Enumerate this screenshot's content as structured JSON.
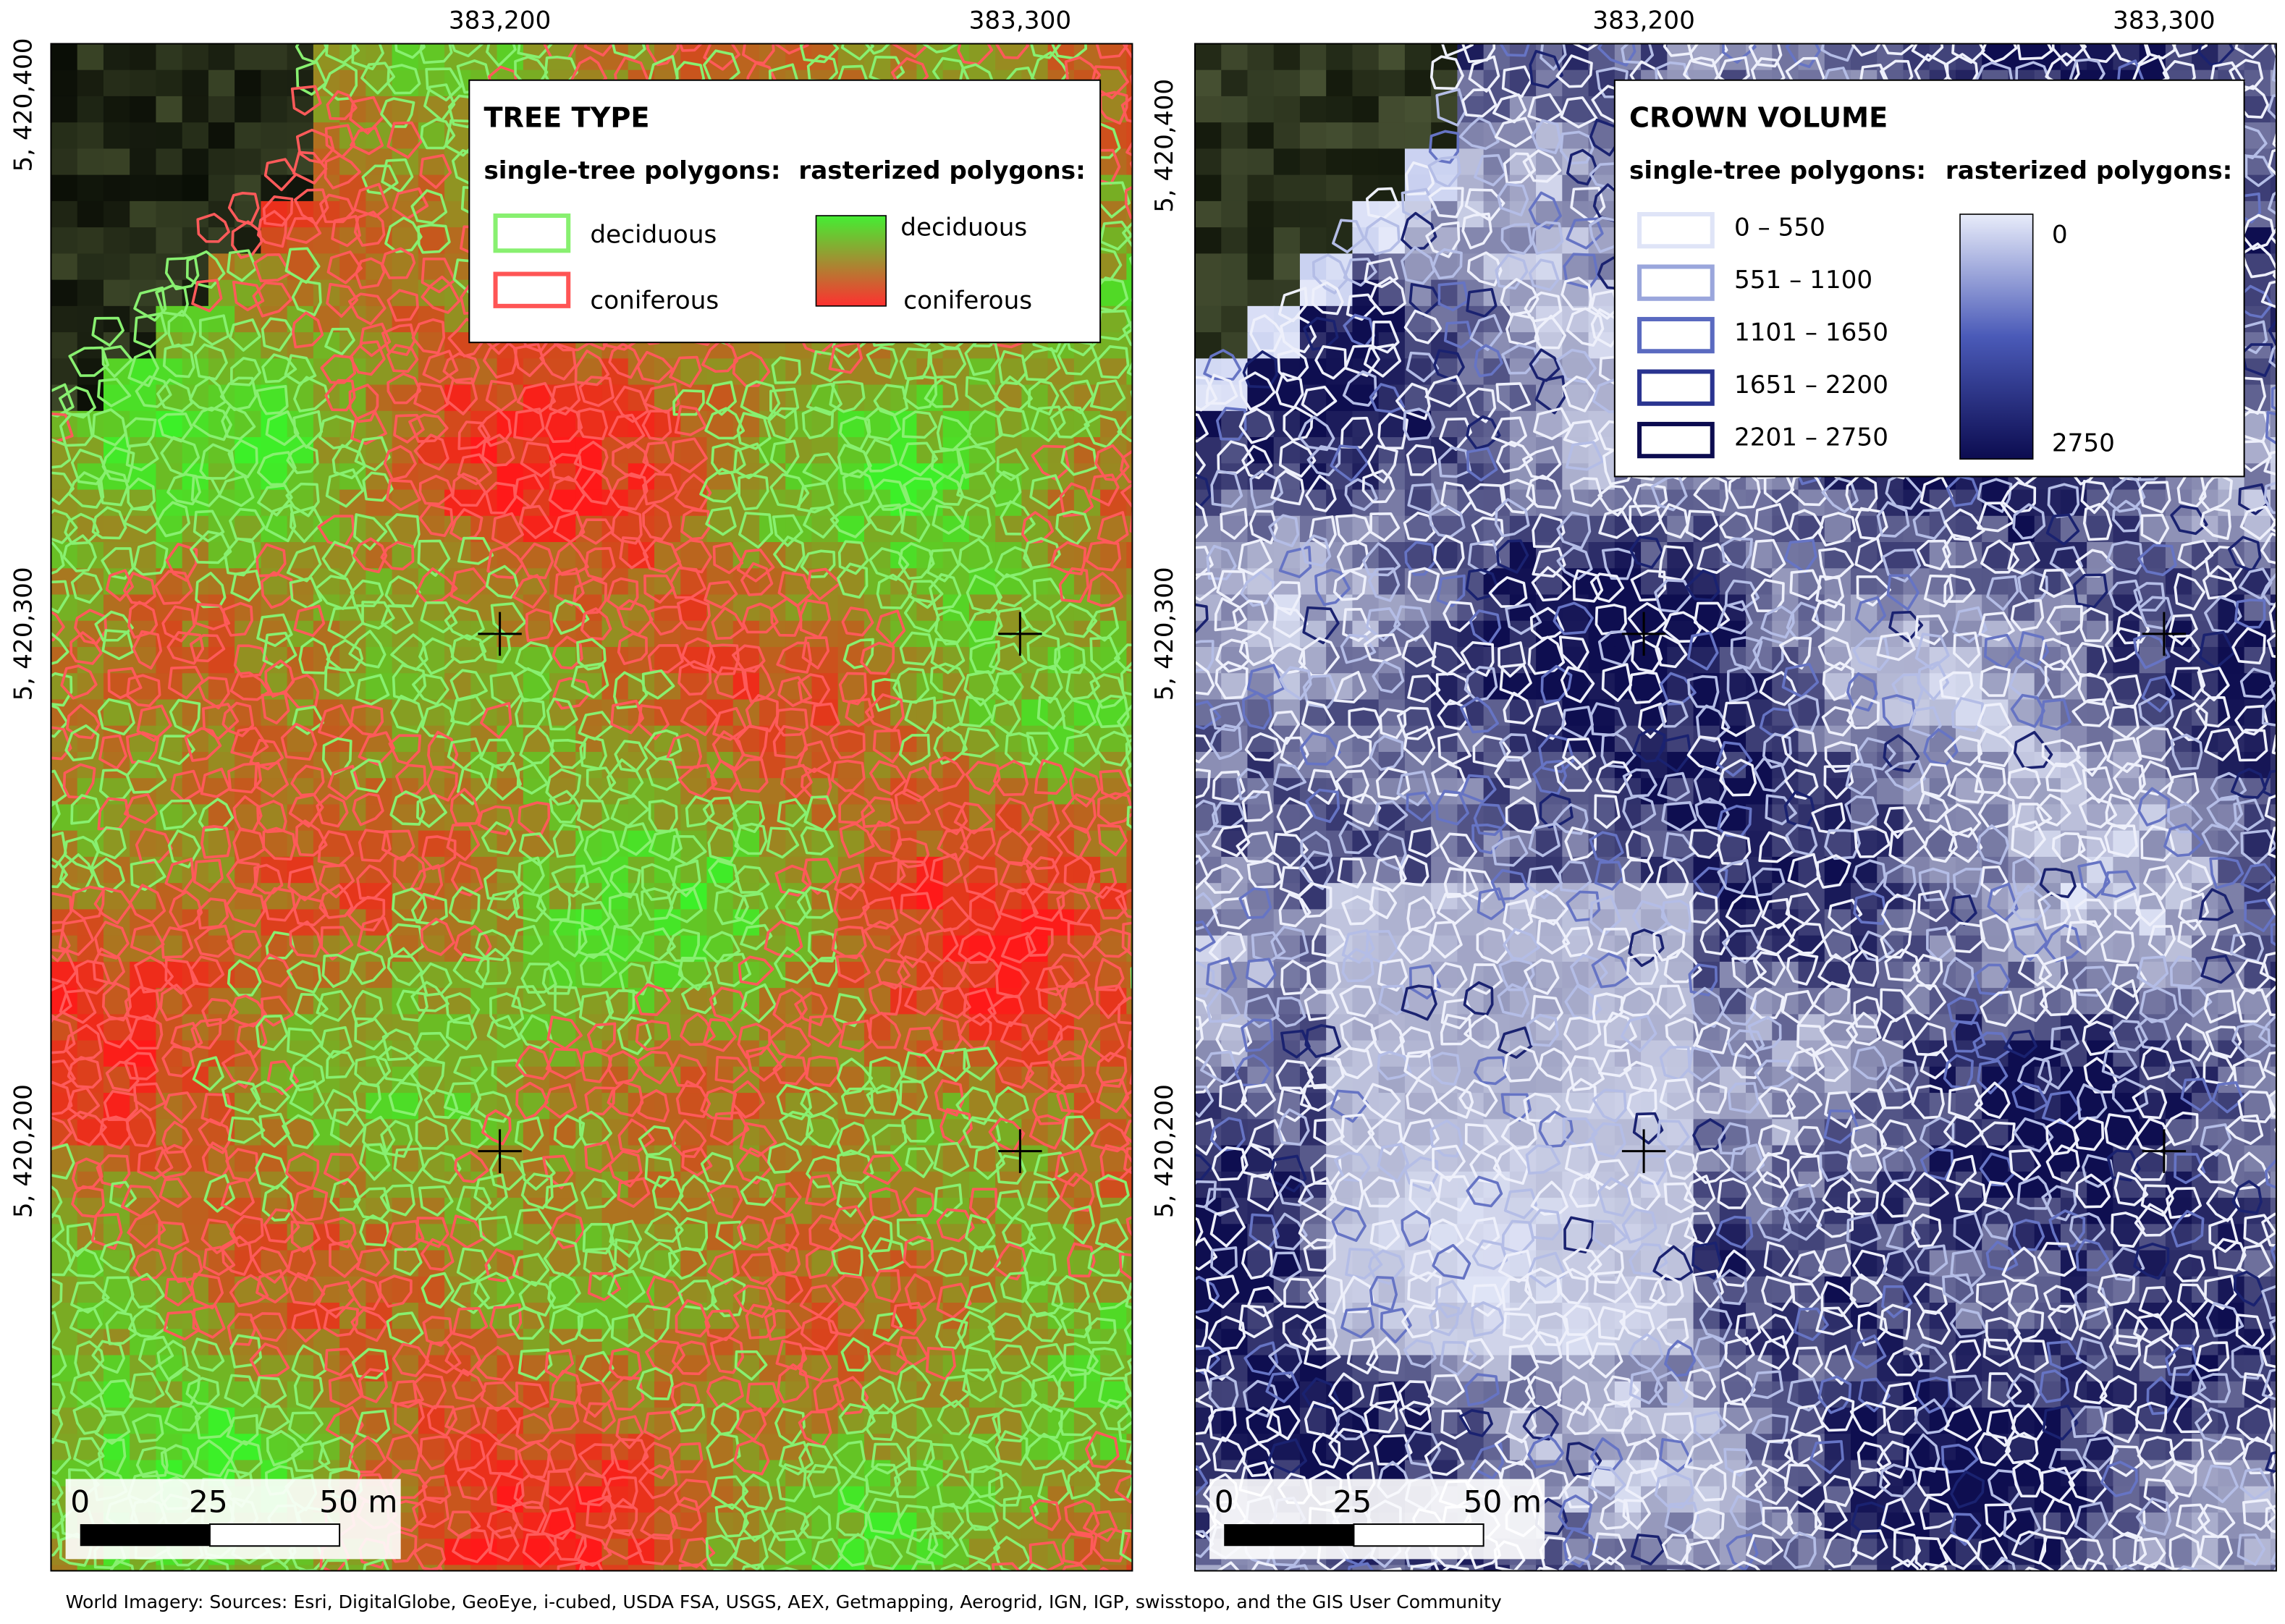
{
  "panels": [
    {
      "top_labels": [
        "383,200",
        "383,300"
      ],
      "left_labels": [
        "5, 420,400",
        "5, 420,300",
        "5, 420,200"
      ],
      "legend": {
        "title": "TREE TYPE",
        "polygons_heading": "single-tree polygons:",
        "raster_heading": "rasterized polygons:",
        "polygon_classes": [
          "deciduous",
          "coniferous"
        ],
        "raster_labels": [
          "deciduous",
          "coniferous"
        ]
      },
      "scale_bar": [
        "0",
        "25",
        "50 m"
      ]
    },
    {
      "top_labels": [
        "383,200",
        "383,300"
      ],
      "left_labels": [
        "5, 420,400",
        "5, 420,300",
        "5, 420,200"
      ],
      "legend": {
        "title": "CROWN VOLUME",
        "polygons_heading": "single-tree polygons:",
        "raster_heading": "rasterized polygons:",
        "polygon_classes": [
          "0 – 550",
          "551 – 1100",
          "1101 – 1650",
          "1651 – 2200",
          "2201 – 2750"
        ],
        "raster_labels": [
          "0",
          "2750"
        ]
      },
      "scale_bar": [
        "0",
        "25",
        "50 m"
      ]
    }
  ],
  "credit": "World Imagery: Sources: Esri, DigitalGlobe, GeoEye, i-cubed, USDA FSA, USGS, AEX, Getmapping, Aerogrid, IGN, IGP, swisstopo, and the GIS User Community"
}
